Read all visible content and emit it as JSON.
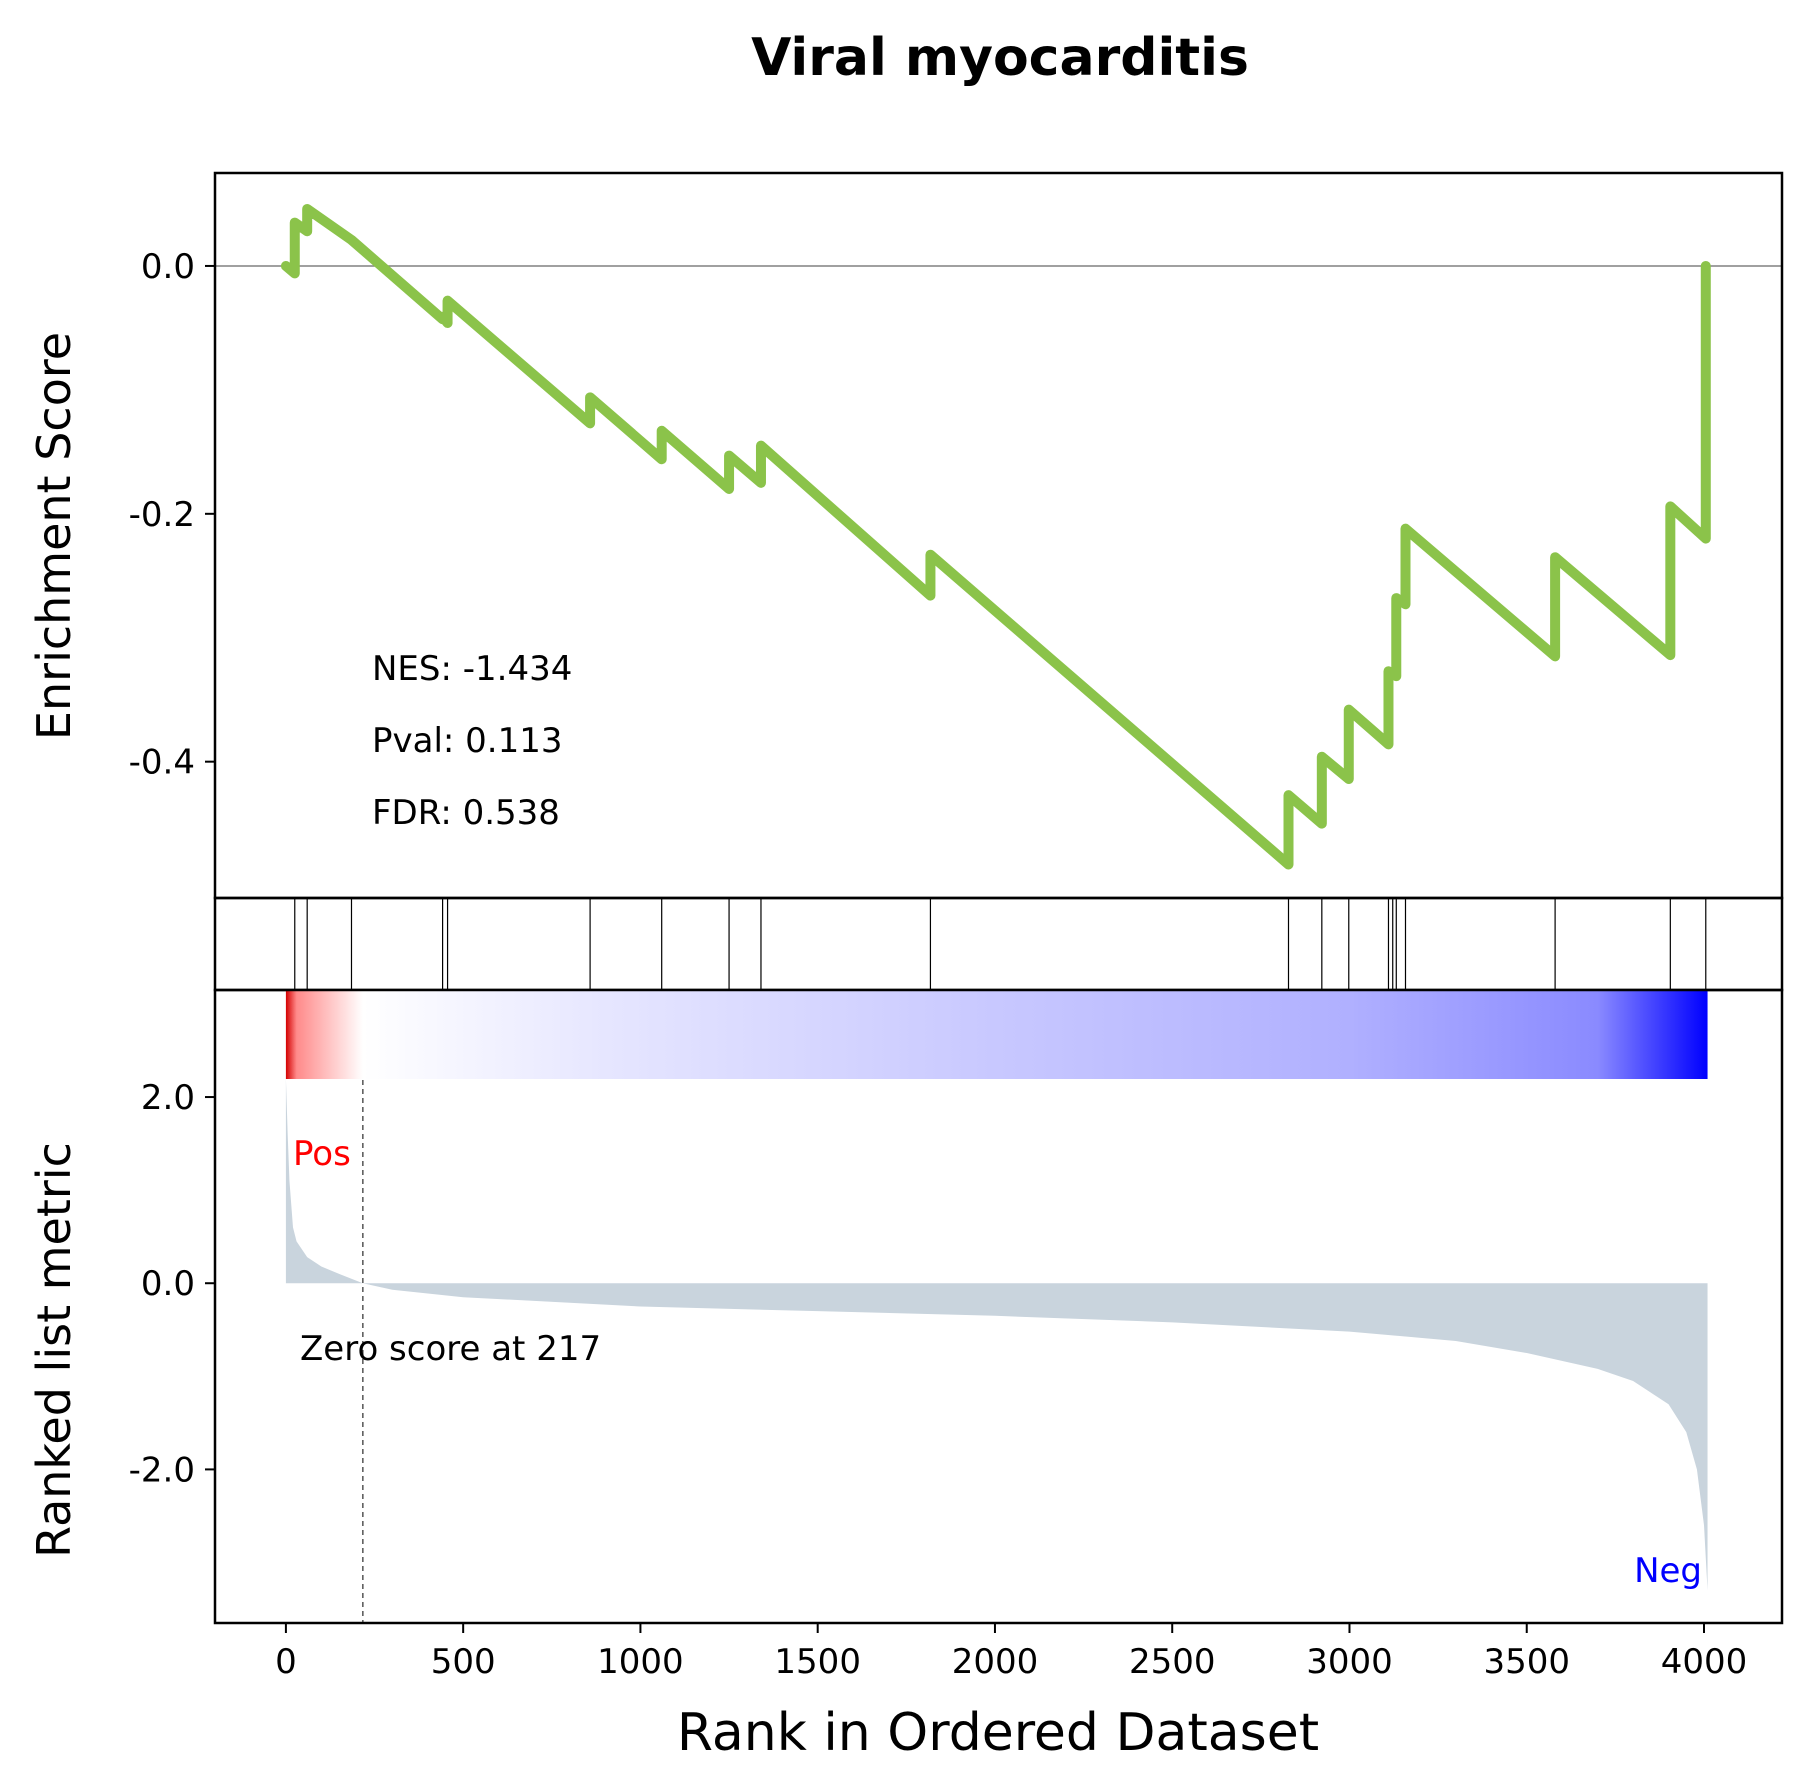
{
  "chart_data": {
    "type": "line",
    "title": "Viral myocarditis",
    "xlabel": "Rank in Ordered Dataset",
    "xlim": [
      -200,
      4220
    ],
    "xticks": [
      0,
      500,
      1000,
      1500,
      2000,
      2500,
      3000,
      3500,
      4000
    ],
    "xtick_labels": [
      "0",
      "500",
      "1000",
      "1500",
      "2000",
      "2500",
      "3000",
      "3500",
      "4000"
    ],
    "enrichment_panel": {
      "ylabel": "Enrichment Score",
      "ylim": [
        -0.51,
        0.075
      ],
      "yticks": [
        0.0,
        -0.2,
        -0.4
      ],
      "ytick_labels": [
        "0.0",
        "-0.2",
        "-0.4"
      ],
      "zero_line": true,
      "series": [
        {
          "color": "#8bc34a",
          "points": [
            [
              0,
              0.0
            ],
            [
              25,
              -0.006
            ],
            [
              25,
              0.035
            ],
            [
              60,
              0.028
            ],
            [
              60,
              0.046
            ],
            [
              185,
              0.021
            ],
            [
              442,
              -0.043
            ],
            [
              442,
              -0.041
            ],
            [
              456,
              -0.046
            ],
            [
              456,
              -0.028
            ],
            [
              858,
              -0.127
            ],
            [
              858,
              -0.106
            ],
            [
              1060,
              -0.156
            ],
            [
              1060,
              -0.133
            ],
            [
              1250,
              -0.18
            ],
            [
              1250,
              -0.153
            ],
            [
              1340,
              -0.175
            ],
            [
              1340,
              -0.145
            ],
            [
              1818,
              -0.266
            ],
            [
              1818,
              -0.233
            ],
            [
              2828,
              -0.483
            ],
            [
              2828,
              -0.427
            ],
            [
              2922,
              -0.45
            ],
            [
              2922,
              -0.396
            ],
            [
              2998,
              -0.414
            ],
            [
              2998,
              -0.358
            ],
            [
              3110,
              -0.386
            ],
            [
              3110,
              -0.327
            ],
            [
              3132,
              -0.331
            ],
            [
              3132,
              -0.268
            ],
            [
              3158,
              -0.273
            ],
            [
              3158,
              -0.212
            ],
            [
              3580,
              -0.315
            ],
            [
              3580,
              -0.235
            ],
            [
              3905,
              -0.314
            ],
            [
              3905,
              -0.194
            ],
            [
              4005,
              -0.22
            ],
            [
              4005,
              0.0
            ]
          ]
        }
      ],
      "annotations": [
        "NES: -1.434",
        "Pval: 0.113",
        "FDR: 0.538"
      ]
    },
    "hits_panel": {
      "hit_positions": [
        25,
        60,
        185,
        442,
        456,
        858,
        1060,
        1250,
        1340,
        1818,
        2828,
        2922,
        2998,
        3110,
        3122,
        3132,
        3158,
        3580,
        3905,
        4005
      ]
    },
    "heatmap_bar": {
      "type": "heatmap",
      "colors": [
        "#d40000",
        "#ff8a8a",
        "#ffffff",
        "#e6e6ff",
        "#c8c8ff",
        "#b0b0ff",
        "#8a8aff",
        "#0000ff"
      ],
      "color_stops": [
        0,
        30,
        217,
        900,
        2000,
        3000,
        3700,
        4010
      ]
    },
    "rank_panel": {
      "type": "area",
      "ylabel": "Ranked list metric",
      "ylim": [
        -3.65,
        3.15
      ],
      "yticks": [
        2.0,
        0.0,
        -2.0
      ],
      "ytick_labels": [
        "2.0",
        "0.0",
        "-2.0"
      ],
      "fill_color": "#c9d4dd",
      "points": [
        [
          0,
          2.2
        ],
        [
          5,
          1.6
        ],
        [
          10,
          1.1
        ],
        [
          20,
          0.6
        ],
        [
          30,
          0.45
        ],
        [
          60,
          0.28
        ],
        [
          100,
          0.18
        ],
        [
          150,
          0.1
        ],
        [
          217,
          0.0
        ],
        [
          300,
          -0.07
        ],
        [
          500,
          -0.15
        ],
        [
          1000,
          -0.25
        ],
        [
          1500,
          -0.3
        ],
        [
          2000,
          -0.35
        ],
        [
          2500,
          -0.42
        ],
        [
          3000,
          -0.52
        ],
        [
          3300,
          -0.62
        ],
        [
          3500,
          -0.75
        ],
        [
          3700,
          -0.92
        ],
        [
          3800,
          -1.05
        ],
        [
          3900,
          -1.3
        ],
        [
          3950,
          -1.6
        ],
        [
          3980,
          -2.0
        ],
        [
          4000,
          -2.6
        ],
        [
          4010,
          -3.3
        ]
      ],
      "zero_score_rank": 217,
      "zero_score_label": "Zero score at 217",
      "pos_label": "Pos",
      "neg_label": "Neg",
      "pos_color": "#ff0000",
      "neg_color": "#0000ff"
    }
  }
}
